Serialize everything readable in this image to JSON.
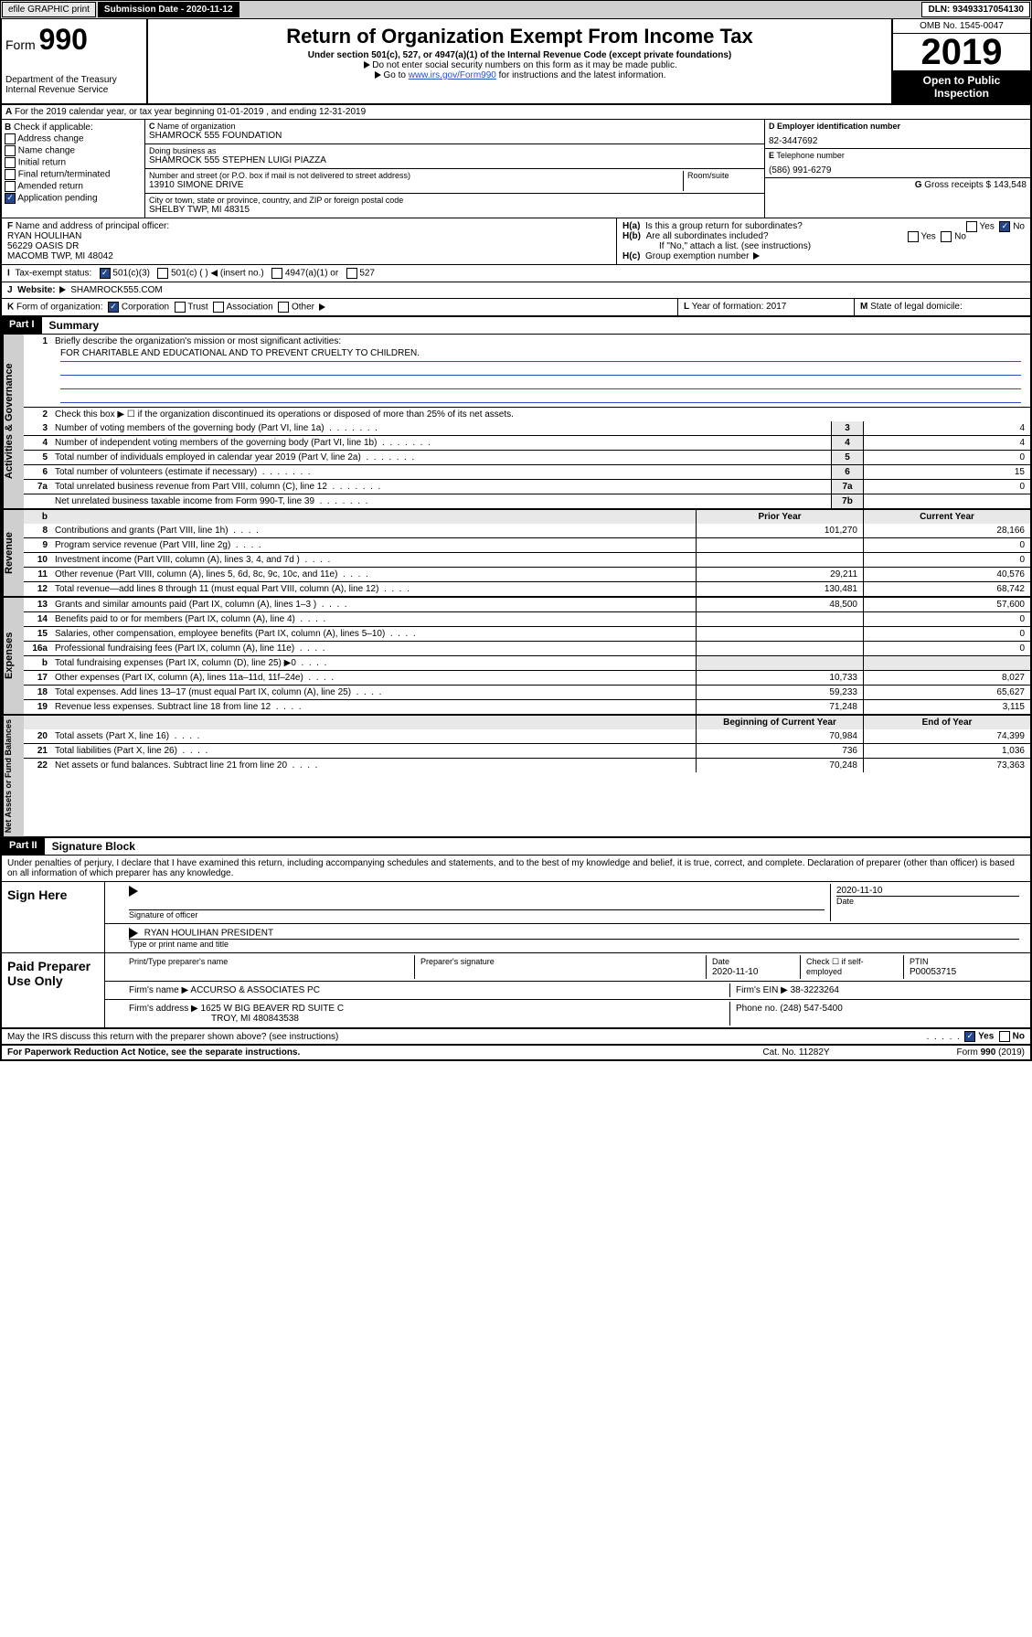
{
  "topbar": {
    "efile": "efile GRAPHIC print",
    "sub_label": "Submission Date - 2020-11-12",
    "dln": "DLN: 93493317054130"
  },
  "header": {
    "form_prefix": "Form",
    "form_num": "990",
    "dept": "Department of the Treasury\nInternal Revenue Service",
    "title": "Return of Organization Exempt From Income Tax",
    "sub1": "Under section 501(c), 527, or 4947(a)(1) of the Internal Revenue Code (except private foundations)",
    "sub2": "Do not enter social security numbers on this form as it may be made public.",
    "sub3_pre": "Go to ",
    "sub3_link": "www.irs.gov/Form990",
    "sub3_post": " for instructions and the latest information.",
    "omb": "OMB No. 1545-0047",
    "year": "2019",
    "open": "Open to Public Inspection"
  },
  "rowA": {
    "text": "For the 2019 calendar year, or tax year beginning 01-01-2019    , and ending 12-31-2019"
  },
  "B": {
    "label": "Check if applicable:",
    "items": [
      "Address change",
      "Name change",
      "Initial return",
      "Final return/terminated",
      "Amended return",
      "Application pending"
    ]
  },
  "C": {
    "name_label": "Name of organization",
    "name": "SHAMROCK 555 FOUNDATION",
    "dba_label": "Doing business as",
    "dba": "SHAMROCK 555 STEPHEN LUIGI PIAZZA",
    "addr_label": "Number and street (or P.O. box if mail is not delivered to street address)",
    "room_label": "Room/suite",
    "addr": "13910 SIMONE DRIVE",
    "city_label": "City or town, state or province, country, and ZIP or foreign postal code",
    "city": "SHELBY TWP, MI  48315"
  },
  "D": {
    "label": "Employer identification number",
    "val": "82-3447692"
  },
  "E": {
    "label": "Telephone number",
    "val": "(586) 991-6279"
  },
  "G": {
    "label": "Gross receipts $",
    "val": "143,548"
  },
  "F": {
    "label": "Name and address of principal officer:",
    "name": "RYAN HOULIHAN",
    "addr1": "56229 OASIS DR",
    "addr2": "MACOMB TWP, MI  48042"
  },
  "H": {
    "a": "Is this a group return for subordinates?",
    "a_yes": "Yes",
    "a_no": "No",
    "b": "Are all subordinates included?",
    "b_note": "If \"No,\" attach a list. (see instructions)",
    "c": "Group exemption number"
  },
  "I": {
    "label": "Tax-exempt status:",
    "opts": [
      "501(c)(3)",
      "501(c) (  ) ◀ (insert no.)",
      "4947(a)(1) or",
      "527"
    ]
  },
  "J": {
    "label": "Website:",
    "val": "SHAMROCK555.COM"
  },
  "K": {
    "label": "Form of organization:",
    "opts": [
      "Corporation",
      "Trust",
      "Association",
      "Other"
    ]
  },
  "L": {
    "label": "Year of formation:",
    "val": "2017"
  },
  "M": {
    "label": "State of legal domicile:",
    "val": ""
  },
  "part1": {
    "header": "Part I",
    "title": "Summary",
    "l1": "Briefly describe the organization's mission or most significant activities:",
    "mission": "FOR CHARITABLE AND EDUCATIONAL AND TO PREVENT CRUELTY TO CHILDREN.",
    "l2": "Check this box ▶ ☐  if the organization discontinued its operations or disposed of more than 25% of its net assets.",
    "rows_gov": [
      {
        "n": "3",
        "t": "Number of voting members of the governing body (Part VI, line 1a)",
        "c": "3",
        "v": "4"
      },
      {
        "n": "4",
        "t": "Number of independent voting members of the governing body (Part VI, line 1b)",
        "c": "4",
        "v": "4"
      },
      {
        "n": "5",
        "t": "Total number of individuals employed in calendar year 2019 (Part V, line 2a)",
        "c": "5",
        "v": "0"
      },
      {
        "n": "6",
        "t": "Total number of volunteers (estimate if necessary)",
        "c": "6",
        "v": "15"
      },
      {
        "n": "7a",
        "t": "Total unrelated business revenue from Part VIII, column (C), line 12",
        "c": "7a",
        "v": "0"
      },
      {
        "n": "",
        "t": "Net unrelated business taxable income from Form 990-T, line 39",
        "c": "7b",
        "v": ""
      }
    ],
    "col_headers": {
      "b": "b",
      "prior": "Prior Year",
      "current": "Current Year"
    },
    "rows_rev": [
      {
        "n": "8",
        "t": "Contributions and grants (Part VIII, line 1h)",
        "p": "101,270",
        "c": "28,166"
      },
      {
        "n": "9",
        "t": "Program service revenue (Part VIII, line 2g)",
        "p": "",
        "c": "0"
      },
      {
        "n": "10",
        "t": "Investment income (Part VIII, column (A), lines 3, 4, and 7d )",
        "p": "",
        "c": "0"
      },
      {
        "n": "11",
        "t": "Other revenue (Part VIII, column (A), lines 5, 6d, 8c, 9c, 10c, and 11e)",
        "p": "29,211",
        "c": "40,576"
      },
      {
        "n": "12",
        "t": "Total revenue—add lines 8 through 11 (must equal Part VIII, column (A), line 12)",
        "p": "130,481",
        "c": "68,742"
      }
    ],
    "rows_exp": [
      {
        "n": "13",
        "t": "Grants and similar amounts paid (Part IX, column (A), lines 1–3 )",
        "p": "48,500",
        "c": "57,600"
      },
      {
        "n": "14",
        "t": "Benefits paid to or for members (Part IX, column (A), line 4)",
        "p": "",
        "c": "0"
      },
      {
        "n": "15",
        "t": "Salaries, other compensation, employee benefits (Part IX, column (A), lines 5–10)",
        "p": "",
        "c": "0"
      },
      {
        "n": "16a",
        "t": "Professional fundraising fees (Part IX, column (A), line 11e)",
        "p": "",
        "c": "0"
      },
      {
        "n": "b",
        "t": "Total fundraising expenses (Part IX, column (D), line 25) ▶0",
        "p": "",
        "c": "",
        "gray": true
      },
      {
        "n": "17",
        "t": "Other expenses (Part IX, column (A), lines 11a–11d, 11f–24e)",
        "p": "10,733",
        "c": "8,027"
      },
      {
        "n": "18",
        "t": "Total expenses. Add lines 13–17 (must equal Part IX, column (A), line 25)",
        "p": "59,233",
        "c": "65,627"
      },
      {
        "n": "19",
        "t": "Revenue less expenses. Subtract line 18 from line 12",
        "p": "71,248",
        "c": "3,115"
      }
    ],
    "col_headers2": {
      "prior": "Beginning of Current Year",
      "current": "End of Year"
    },
    "rows_net": [
      {
        "n": "20",
        "t": "Total assets (Part X, line 16)",
        "p": "70,984",
        "c": "74,399"
      },
      {
        "n": "21",
        "t": "Total liabilities (Part X, line 26)",
        "p": "736",
        "c": "1,036"
      },
      {
        "n": "22",
        "t": "Net assets or fund balances. Subtract line 21 from line 20",
        "p": "70,248",
        "c": "73,363"
      }
    ],
    "tabs": {
      "gov": "Activities & Governance",
      "rev": "Revenue",
      "exp": "Expenses",
      "net": "Net Assets or Fund Balances"
    }
  },
  "part2": {
    "header": "Part II",
    "title": "Signature Block",
    "intro": "Under penalties of perjury, I declare that I have examined this return, including accompanying schedules and statements, and to the best of my knowledge and belief, it is true, correct, and complete. Declaration of preparer (other than officer) is based on all information of which preparer has any knowledge."
  },
  "sign": {
    "here": "Sign Here",
    "sig_label": "Signature of officer",
    "date": "2020-11-10",
    "date_label": "Date",
    "name": "RYAN HOULIHAN  PRESIDENT",
    "name_label": "Type or print name and title"
  },
  "paid": {
    "label": "Paid Preparer Use Only",
    "col1": "Print/Type preparer's name",
    "col2": "Preparer's signature",
    "col3_label": "Date",
    "col3": "2020-11-10",
    "col4_label": "Check ☐ if self-employed",
    "col5_label": "PTIN",
    "col5": "P00053715",
    "firm_label": "Firm's name    ▶",
    "firm": "ACCURSO & ASSOCIATES PC",
    "ein_label": "Firm's EIN ▶",
    "ein": "38-3223264",
    "addr_label": "Firm's address ▶",
    "addr1": "1625 W BIG BEAVER RD SUITE C",
    "addr2": "TROY, MI  480843538",
    "phone_label": "Phone no.",
    "phone": "(248) 547-5400"
  },
  "footer": {
    "q": "May the IRS discuss this return with the preparer shown above? (see instructions)",
    "yes": "Yes",
    "no": "No",
    "pra": "For Paperwork Reduction Act Notice, see the separate instructions.",
    "cat": "Cat. No. 11282Y",
    "form": "Form 990 (2019)"
  }
}
